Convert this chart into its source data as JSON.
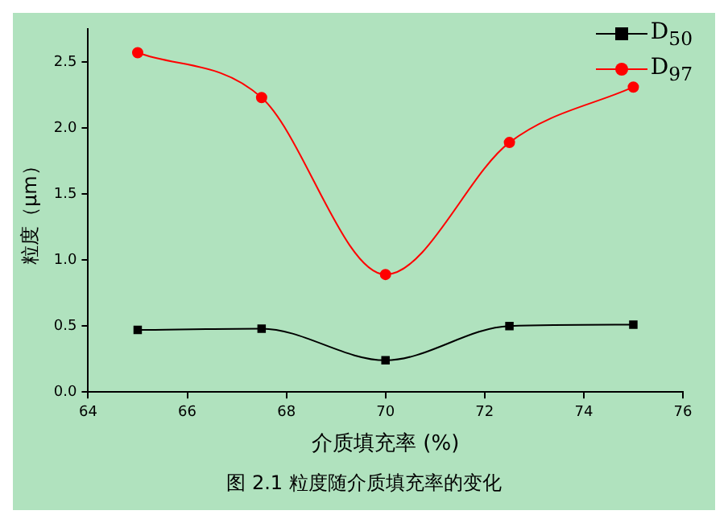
{
  "chart_data": {
    "type": "line",
    "xlabel": "介质填充率 (%)",
    "ylabel": "粒度（μm）",
    "x": [
      65,
      67.5,
      70,
      72.5,
      75
    ],
    "series": [
      {
        "name": "D$_{50}$",
        "color": "#000000",
        "marker": "square",
        "values": [
          0.47,
          0.48,
          0.24,
          0.5,
          0.51
        ]
      },
      {
        "name": "D$_{97}$",
        "color": "#ff0000",
        "marker": "circle",
        "values": [
          2.57,
          2.23,
          0.89,
          1.89,
          2.31
        ]
      }
    ],
    "xlim": [
      64,
      76
    ],
    "xticks": [
      64,
      66,
      68,
      70,
      72,
      74,
      76
    ],
    "ylim": [
      0,
      2.75
    ],
    "yticks": [
      {
        "value": 0,
        "label": "0.0"
      },
      {
        "value": 0.5,
        "label": "0.5"
      },
      {
        "value": 1,
        "label": "1.0"
      },
      {
        "value": 1.5,
        "label": "1.5"
      },
      {
        "value": 2,
        "label": "2.0"
      },
      {
        "value": 2.5,
        "label": "2.5"
      }
    ],
    "grid": false,
    "legend": "top right",
    "annotations": [
      "图 2.1 粒度随介质填充率的变化"
    ]
  }
}
